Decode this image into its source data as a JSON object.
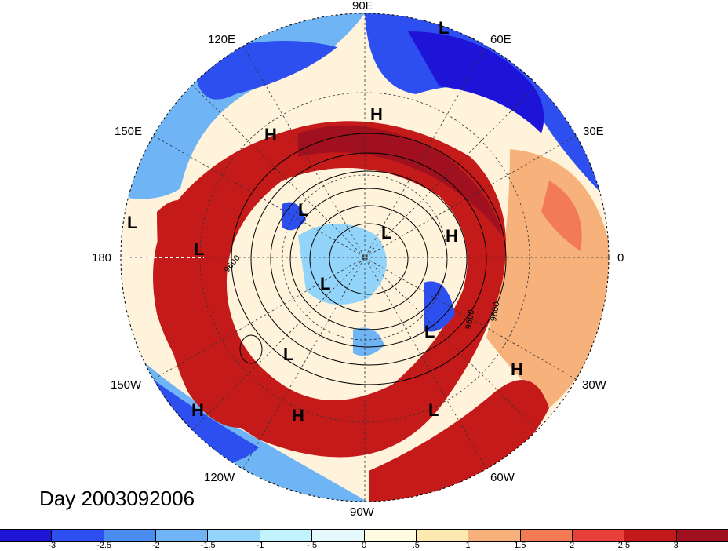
{
  "title": "Day 2003092006",
  "longitude_labels": {
    "n90e": "90E",
    "n120e": "120E",
    "n60e": "60E",
    "n150e": "150E",
    "n30e": "30E",
    "n180": "180",
    "n0": "0",
    "n150w": "150W",
    "n30w": "30W",
    "n120w": "120W",
    "n60w": "60W",
    "n90w": "90W"
  },
  "contour_labels": [
    "9600",
    "9600",
    "9600"
  ],
  "pressure_centers": [
    {
      "type": "L"
    },
    {
      "type": "H"
    },
    {
      "type": "H"
    },
    {
      "type": "L"
    },
    {
      "type": "L"
    },
    {
      "type": "L"
    },
    {
      "type": "L"
    },
    {
      "type": "H"
    },
    {
      "type": "L"
    },
    {
      "type": "L"
    },
    {
      "type": "H"
    },
    {
      "type": "L"
    },
    {
      "type": "H"
    },
    {
      "type": "H"
    },
    {
      "type": "L"
    }
  ],
  "colorbar": {
    "colors": [
      "#1e14d8",
      "#2e4ff0",
      "#4a8cf0",
      "#6fb4f5",
      "#93d4fa",
      "#c2f2fc",
      "#e6fafd",
      "#fffbe2",
      "#fde8b0",
      "#f7b27c",
      "#f27a55",
      "#e84038",
      "#c41a1a",
      "#a0101e"
    ],
    "tick_labels": [
      "-3",
      "-2.5",
      "-2",
      "-1.5",
      "-1",
      "-.5",
      "0",
      ".5",
      "1",
      "1.5",
      "2",
      "2.5",
      "3"
    ]
  }
}
